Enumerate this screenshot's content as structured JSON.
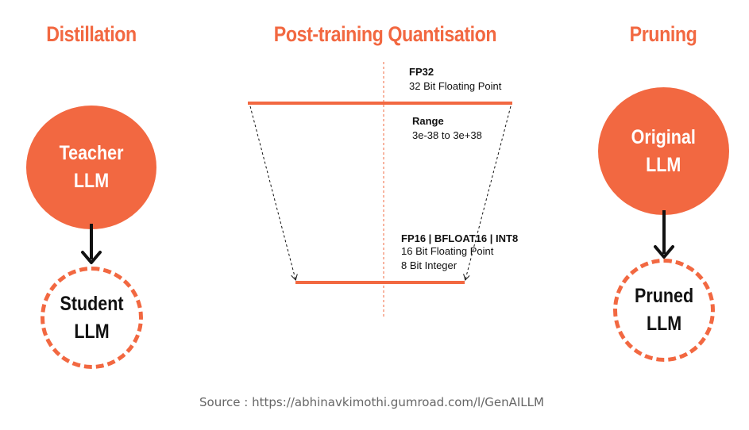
{
  "colors": {
    "accent": "#f26841",
    "text": "#111111",
    "caption": "#666666"
  },
  "distillation": {
    "title": "Distillation",
    "teacher": [
      "Teacher",
      "LLM"
    ],
    "student": [
      "Student",
      "LLM"
    ]
  },
  "quantisation": {
    "title": "Post-training Quantisation",
    "fp32_label": "FP32",
    "fp32_desc": "32 Bit Floating Point",
    "range_label": "Range",
    "range_value": "3e-38 to 3e+38",
    "low_label": "FP16 | BFLOAT16 | INT8",
    "low_desc_1": "16 Bit Floating Point",
    "low_desc_2": "8 Bit Integer"
  },
  "pruning": {
    "title": "Pruning",
    "original": [
      "Original",
      "LLM"
    ],
    "pruned": [
      "Pruned",
      "LLM"
    ]
  },
  "source": "Source : https://abhinavkimothi.gumroad.com/l/GenAILLM"
}
